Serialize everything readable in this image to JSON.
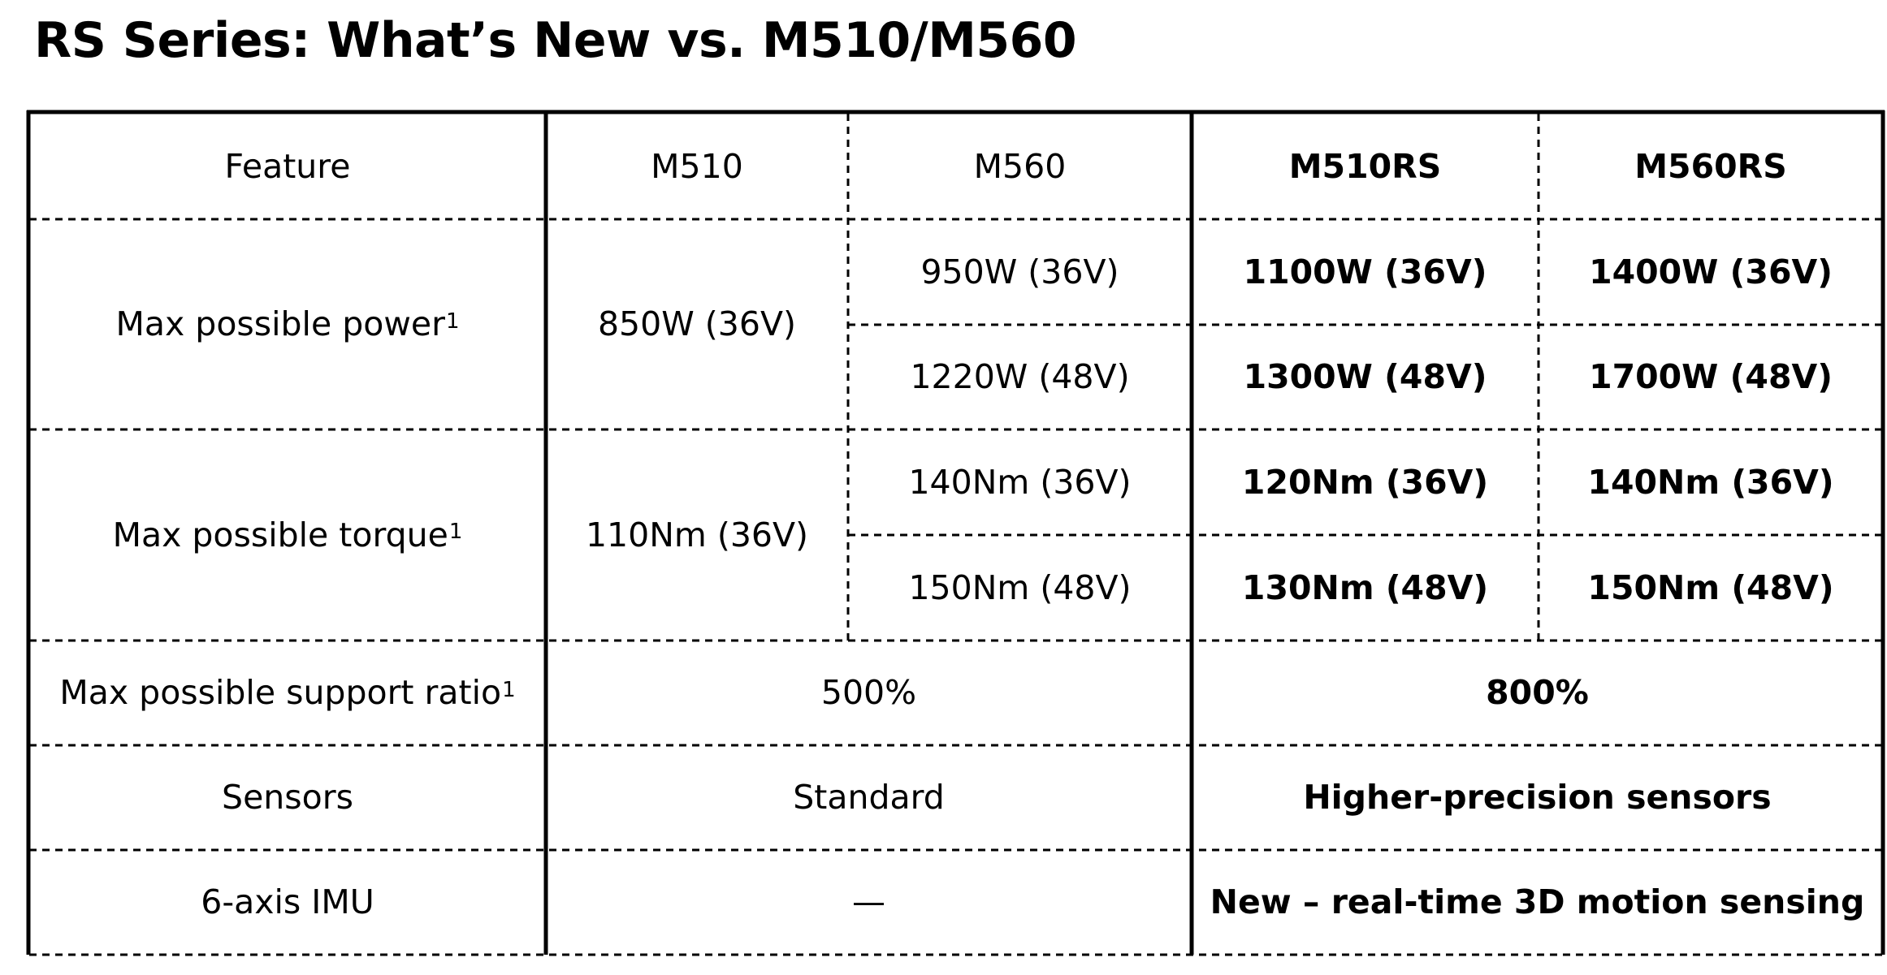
{
  "title": "RS Series: What’s New vs. M510/M560",
  "header": {
    "feature": "Feature",
    "m510": "M510",
    "m560": "M560",
    "m510rs": "M510RS",
    "m560rs": "M560RS"
  },
  "rows": {
    "power": {
      "label": "Max possible power",
      "footnote": "1",
      "m510": "850W (36V)",
      "m560_36v": "950W (36V)",
      "m560_48v": "1220W (48V)",
      "m510rs_36v": "1100W (36V)",
      "m510rs_48v": "1300W (48V)",
      "m560rs_36v": "1400W (36V)",
      "m560rs_48v": "1700W (48V)"
    },
    "torque": {
      "label": "Max possible torque",
      "footnote": "1",
      "m510": "110Nm (36V)",
      "m560_36v": "140Nm (36V)",
      "m560_48v": "150Nm (48V)",
      "m510rs_36v": "120Nm (36V)",
      "m510rs_48v": "130Nm (48V)",
      "m560rs_36v": "140Nm (36V)",
      "m560rs_48v": "150Nm (48V)"
    },
    "support": {
      "label": "Max possible support ratio",
      "footnote": "1",
      "old": "500%",
      "rs": "800%"
    },
    "sensors": {
      "label": "Sensors",
      "old": "Standard",
      "rs": "Higher-precision sensors"
    },
    "imu": {
      "label": "6-axis IMU",
      "old": "—",
      "rs": "New – real-time 3D motion sensing"
    }
  }
}
